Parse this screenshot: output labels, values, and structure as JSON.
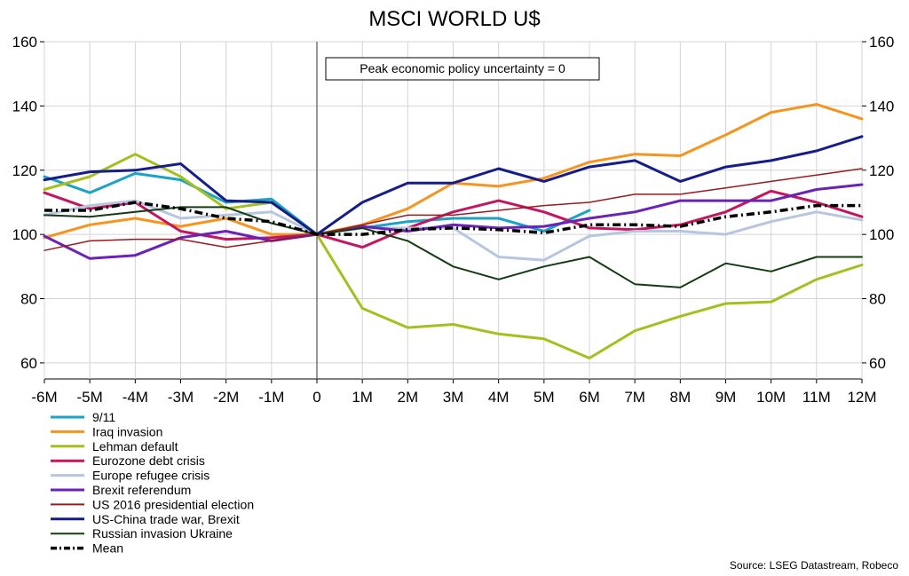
{
  "chart_data": {
    "type": "line",
    "title": "MSCI WORLD U$",
    "annotation": "Peak economic policy uncertainty = 0",
    "source": "Source: LSEG Datastream, Robeco",
    "xlabel": "",
    "ylabel": "",
    "ylim": [
      55,
      160
    ],
    "yticks": [
      60,
      80,
      100,
      120,
      140,
      160
    ],
    "x": [
      "-6M",
      "-5M",
      "-4M",
      "-3M",
      "-2M",
      "-1M",
      "0",
      "1M",
      "2M",
      "3M",
      "4M",
      "5M",
      "6M",
      "7M",
      "8M",
      "9M",
      "10M",
      "11M",
      "12M"
    ],
    "series": [
      {
        "name": "9/11",
        "color": "#1aa3c4",
        "style": "solid",
        "width": 3,
        "values": [
          118,
          113,
          119,
          117,
          110,
          111,
          100,
          102,
          104,
          105,
          105,
          101,
          107.5,
          null,
          null,
          null,
          null,
          null,
          null
        ]
      },
      {
        "name": "Iraq invasion",
        "color": "#f7941d",
        "style": "solid",
        "width": 3,
        "values": [
          99,
          103,
          105,
          102.5,
          105,
          100,
          100,
          103,
          108,
          116,
          115,
          117.5,
          122.5,
          125,
          124.5,
          131,
          138,
          140.5,
          136
        ]
      },
      {
        "name": "Lehman default",
        "color": "#a5bf1e",
        "style": "solid",
        "width": 3,
        "values": [
          114,
          118,
          125,
          118,
          108,
          110,
          100,
          77,
          71,
          72,
          69,
          67.5,
          61.5,
          70,
          74.5,
          78.5,
          79,
          86,
          90.5
        ]
      },
      {
        "name": "Eurozone debt crisis",
        "color": "#c4165f",
        "style": "solid",
        "width": 3,
        "values": [
          113,
          108,
          110,
          101,
          98.5,
          99,
          100,
          96,
          102,
          107,
          110.5,
          107,
          102,
          101.5,
          103,
          107,
          113.5,
          110,
          105.5
        ]
      },
      {
        "name": "Europe refugee crisis",
        "color": "#b6c6e0",
        "style": "solid",
        "width": 3,
        "values": [
          106,
          109,
          110.5,
          105,
          106,
          107,
          100,
          102,
          102,
          102,
          93,
          92,
          99.5,
          101,
          101,
          100,
          104,
          107,
          104.5
        ]
      },
      {
        "name": "Brexit referendum",
        "color": "#6a22b8",
        "style": "solid",
        "width": 3,
        "values": [
          99.5,
          92.5,
          93.5,
          99,
          101,
          98,
          100,
          102.5,
          101,
          103,
          102,
          102.5,
          105,
          107,
          110.5,
          110.5,
          110.5,
          114,
          115.5
        ]
      },
      {
        "name": "US 2016 presidential election",
        "color": "#9b1a1a",
        "style": "solid",
        "width": 1.5,
        "values": [
          95,
          98,
          98.5,
          98.5,
          96,
          98,
          100,
          103,
          106,
          106,
          107.5,
          109,
          110,
          112.5,
          112.5,
          114.5,
          116.5,
          118.5,
          120.5
        ]
      },
      {
        "name": "US-China trade war, Brexit",
        "color": "#141d8a",
        "style": "solid",
        "width": 3,
        "values": [
          117,
          119.5,
          120,
          122,
          110.5,
          110,
          100,
          110,
          116,
          116,
          120.5,
          116.5,
          121,
          123,
          116.5,
          121,
          123,
          126,
          130.5
        ]
      },
      {
        "name": "Russian invasion Ukraine",
        "color": "#133c13",
        "style": "solid",
        "width": 2,
        "values": [
          106,
          105.5,
          107,
          108.5,
          108.5,
          103.5,
          100,
          102,
          98,
          90,
          86,
          90,
          93,
          84.5,
          83.5,
          91,
          88.5,
          93,
          93
        ]
      },
      {
        "name": "Mean",
        "color": "#000000",
        "style": "dashdot",
        "width": 3.5,
        "values": [
          107.5,
          107.5,
          110,
          108,
          105,
          104,
          100,
          100,
          101.5,
          102,
          101.5,
          100.5,
          103,
          103,
          102.5,
          105.5,
          107,
          109,
          109
        ]
      }
    ]
  }
}
